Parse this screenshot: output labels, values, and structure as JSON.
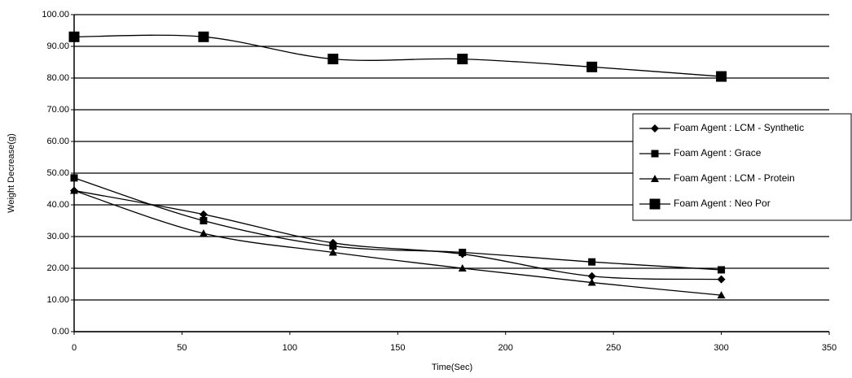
{
  "chart_data": {
    "type": "line",
    "x_label": "Time(Sec)",
    "y_label": "Weight Decrease(g)",
    "x": [
      0,
      60,
      120,
      180,
      240,
      300
    ],
    "xlim": [
      0,
      350
    ],
    "xticks": [
      0,
      50,
      100,
      150,
      200,
      250,
      300,
      350
    ],
    "ylim": [
      0,
      100
    ],
    "yticks": [
      {
        "value": 0,
        "label": "0.00"
      },
      {
        "value": 10,
        "label": "10.00"
      },
      {
        "value": 20,
        "label": "20.00"
      },
      {
        "value": 30,
        "label": "30.00"
      },
      {
        "value": 40,
        "label": "40.00"
      },
      {
        "value": 50,
        "label": "50.00"
      },
      {
        "value": 60,
        "label": "60.00"
      },
      {
        "value": 70,
        "label": "70.00"
      },
      {
        "value": 80,
        "label": "80.00"
      },
      {
        "value": 90,
        "label": "90.00"
      },
      {
        "value": 100,
        "label": "100.00"
      }
    ],
    "grid": true,
    "legend": "right",
    "series": [
      {
        "name": "Foam Agent : LCM - Synthetic",
        "color": "#000000",
        "marker": "diamond",
        "values": [
          44.5,
          37,
          28,
          24.5,
          17.5,
          16.5
        ]
      },
      {
        "name": "Foam Agent : Grace",
        "color": "#000000",
        "marker": "square",
        "values": [
          48.5,
          35,
          27,
          25,
          22,
          19.5
        ]
      },
      {
        "name": "Foam Agent : LCM - Protein",
        "color": "#000000",
        "marker": "triangle",
        "values": [
          44.5,
          31,
          25,
          20,
          15.5,
          11.5
        ]
      },
      {
        "name": "Foam Agent : Neo Por",
        "color": "#000000",
        "marker": "big-square",
        "values": [
          93,
          93,
          86,
          86,
          83.5,
          80.5
        ]
      }
    ]
  }
}
